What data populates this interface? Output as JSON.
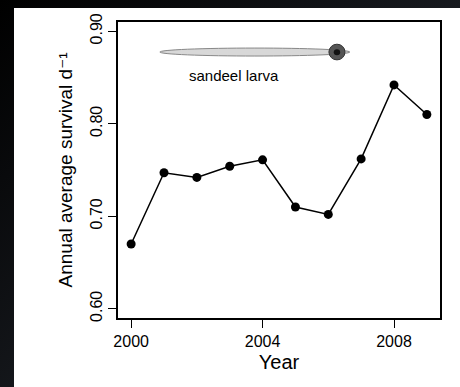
{
  "chart_data": {
    "type": "line",
    "x": [
      2000,
      2001,
      2002,
      2003,
      2004,
      2005,
      2006,
      2007,
      2008,
      2009
    ],
    "values": [
      0.67,
      0.747,
      0.742,
      0.754,
      0.761,
      0.71,
      0.702,
      0.762,
      0.842,
      0.81
    ],
    "x_label": "Year",
    "y_label": "Annual average survival d⁻¹",
    "annotation": "sandeel larva",
    "color": "#000000",
    "marker": "circle",
    "xlim": [
      1999.6,
      2009.4
    ],
    "xticks": [
      2000,
      2004,
      2008
    ],
    "ylim": [
      0.59,
      0.91
    ],
    "yticks": [
      {
        "value": 0.6,
        "label": "0.60"
      },
      {
        "value": 0.7,
        "label": "0.70"
      },
      {
        "value": 0.8,
        "label": "0.80"
      },
      {
        "value": 0.9,
        "label": "0.90"
      }
    ],
    "grid": false
  }
}
